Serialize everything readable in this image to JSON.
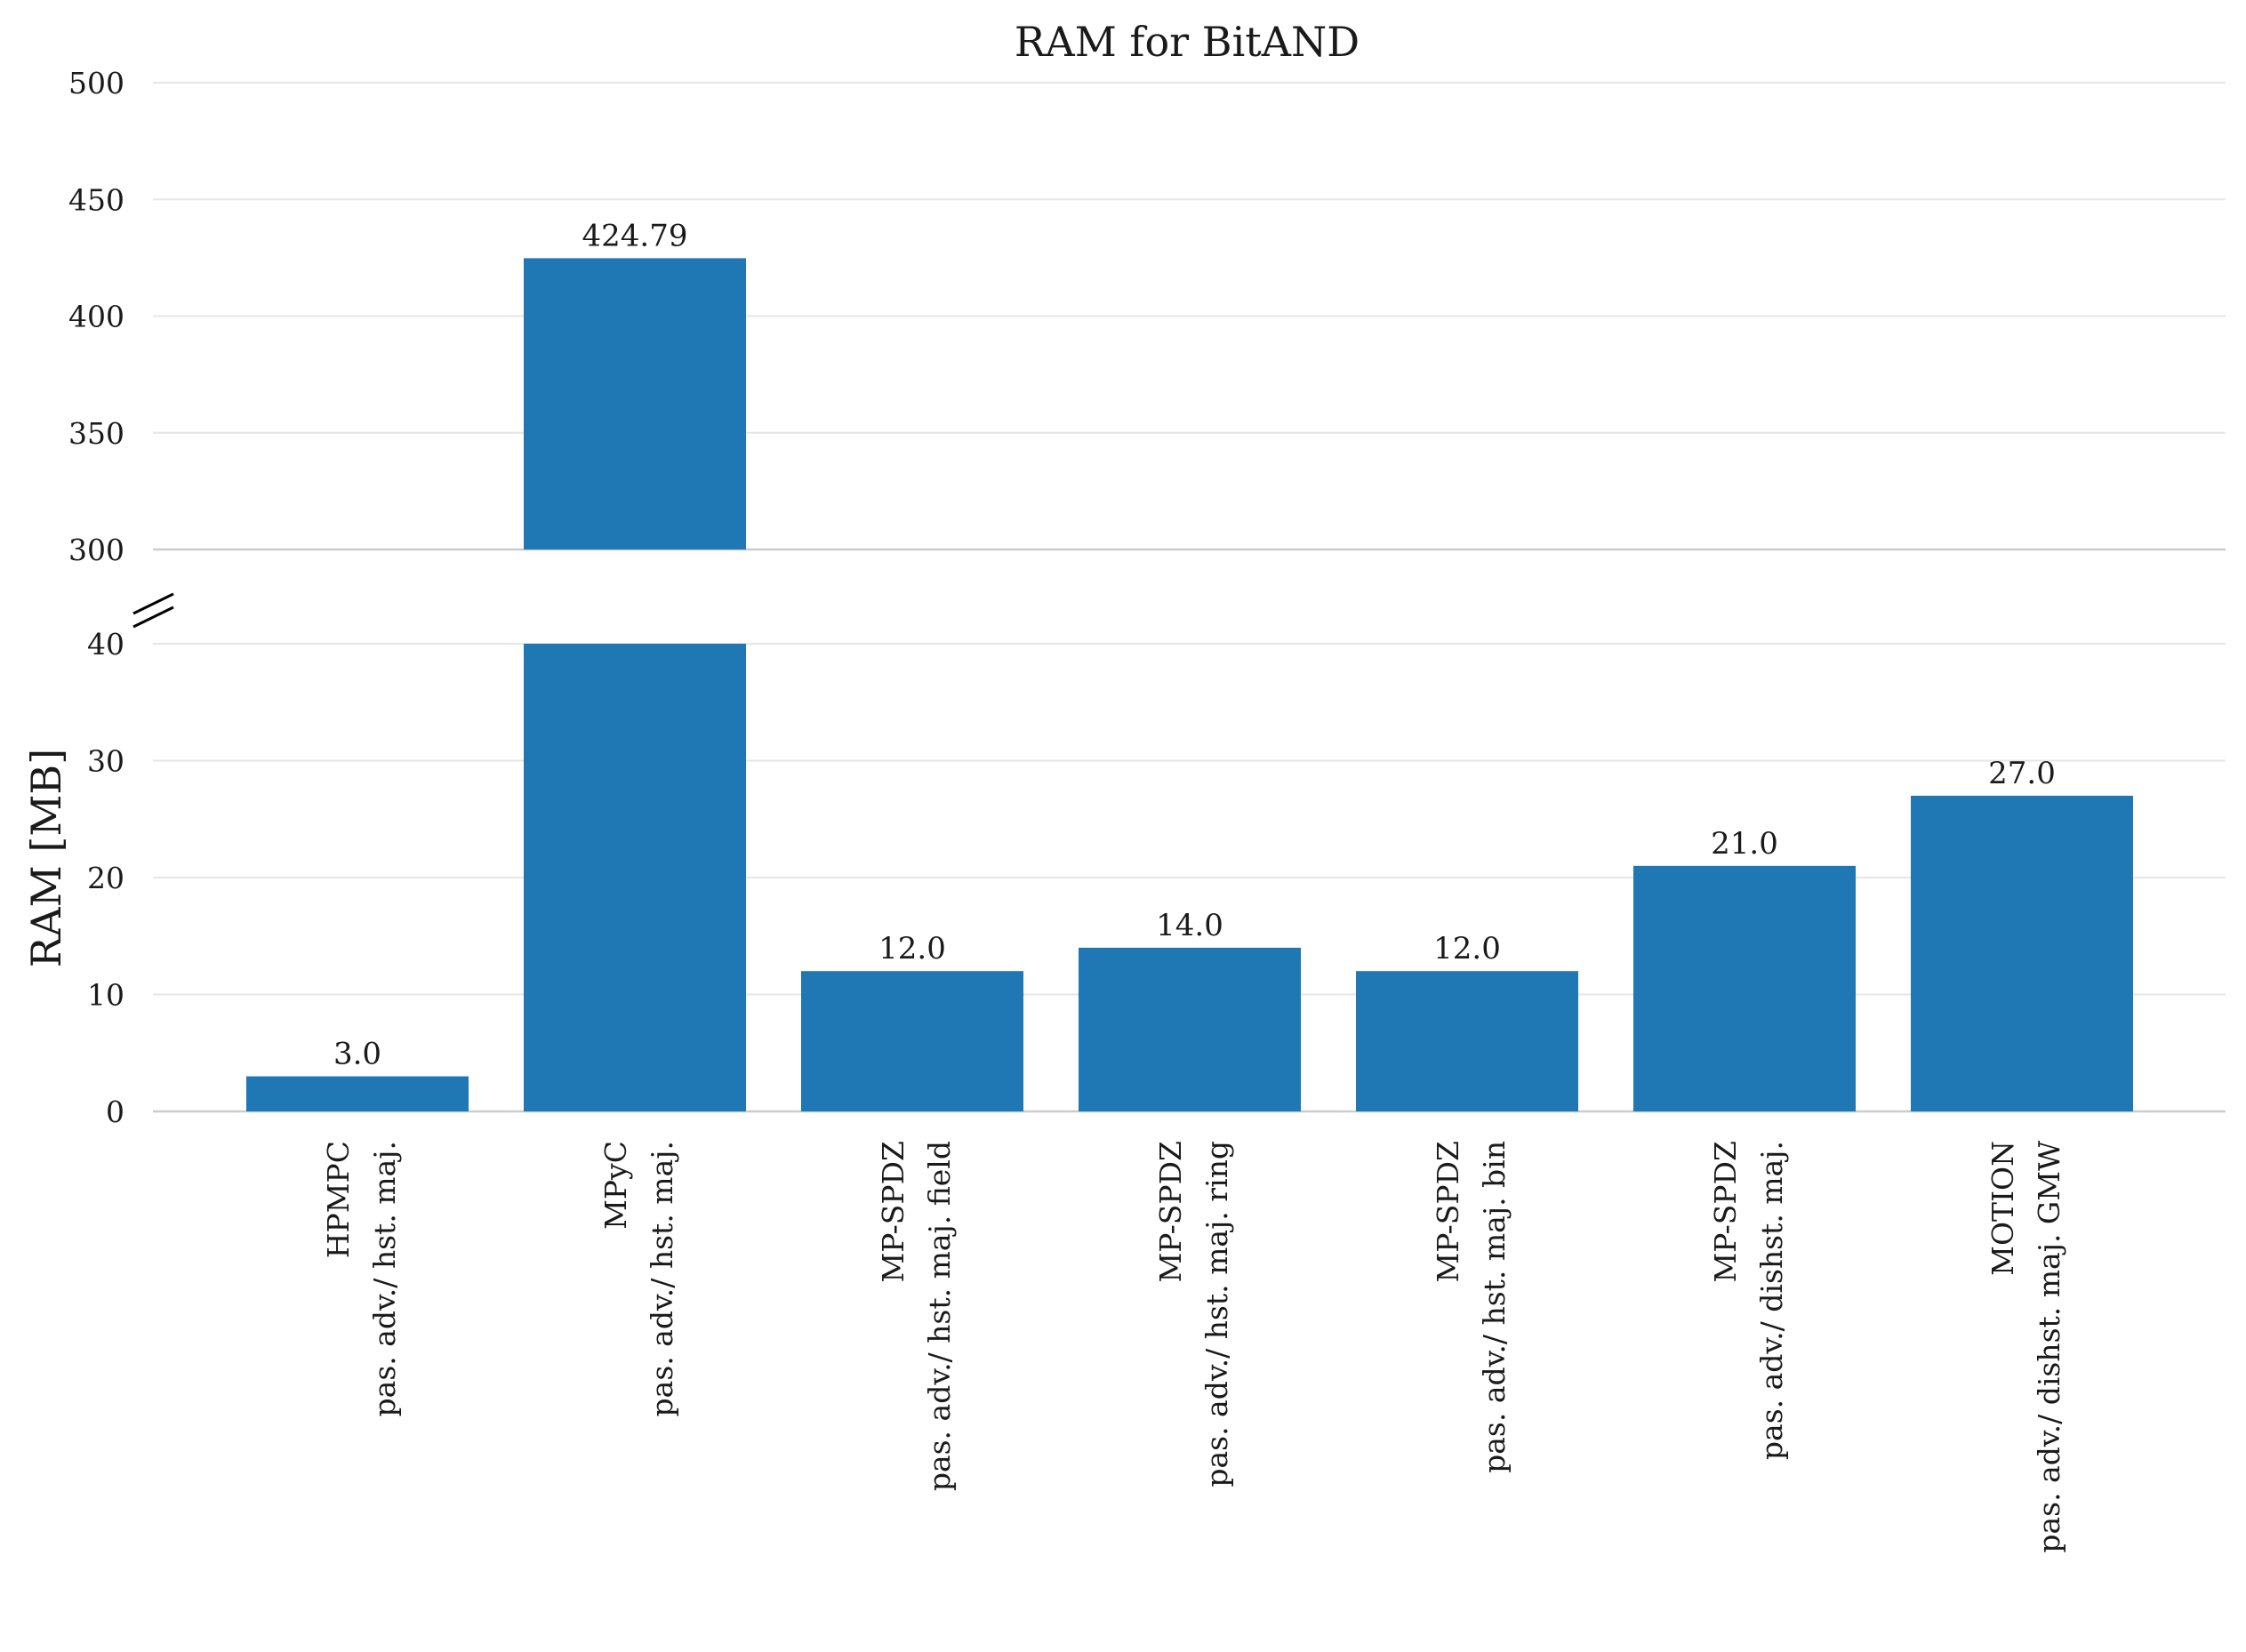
{
  "chart_data": {
    "type": "bar",
    "title": "RAM for BitAND",
    "xlabel": "",
    "ylabel": "RAM [MB]",
    "broken_axis": true,
    "upper_ylim": [
      300,
      500
    ],
    "lower_ylim": [
      0,
      40
    ],
    "upper_yticks": [
      "300",
      "350",
      "400",
      "450",
      "500"
    ],
    "lower_yticks": [
      "0",
      "10",
      "20",
      "30",
      "40"
    ],
    "grid": true,
    "bar_color": "#1f77b4",
    "categories": [
      [
        "HPMPC",
        "pas. adv./ hst. maj."
      ],
      [
        "MPyC",
        "pas. adv./ hst. maj."
      ],
      [
        "MP-SPDZ",
        "pas. adv./ hst. maj. field"
      ],
      [
        "MP-SPDZ",
        "pas. adv./ hst. maj. ring"
      ],
      [
        "MP-SPDZ",
        "pas. adv./ hst. maj. bin"
      ],
      [
        "MP-SPDZ",
        "pas. adv./ dishst. maj."
      ],
      [
        "MOTION",
        "pas. adv./ dishst. maj. GMW"
      ]
    ],
    "values": [
      3.0,
      424.79,
      12.0,
      14.0,
      12.0,
      21.0,
      27.0
    ],
    "value_labels": [
      "3.0",
      "424.79",
      "12.0",
      "14.0",
      "12.0",
      "21.0",
      "27.0"
    ]
  }
}
